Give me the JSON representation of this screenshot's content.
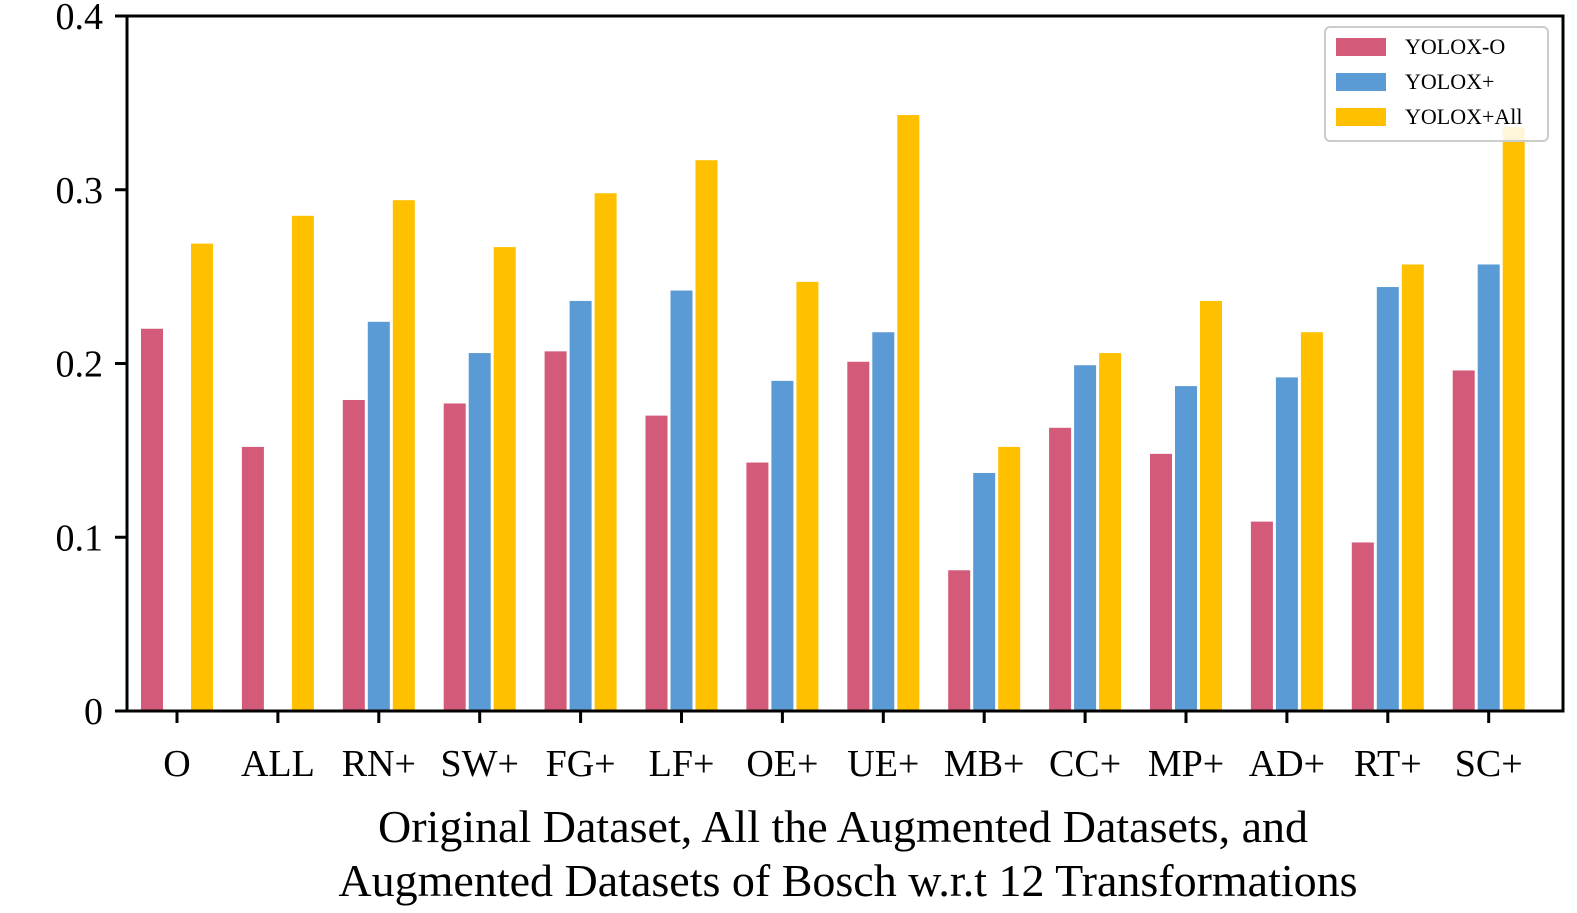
{
  "chart_data": {
    "type": "bar",
    "title": "",
    "xlabel_lines": [
      "Original Dataset, All the Augmented Datasets, and",
      "Augmented Datasets of Bosch w.r.t 12 Transformations"
    ],
    "ylabel": "",
    "ylim": [
      0,
      0.4
    ],
    "yticks": [
      0,
      0.1,
      0.2,
      0.3,
      0.4
    ],
    "ytick_labels": [
      "0",
      "0.1",
      "0.2",
      "0.3",
      "0.4"
    ],
    "grid": false,
    "legend_position": "top-right",
    "categories": [
      "O",
      "ALL",
      "RN+",
      "SW+",
      "FG+",
      "LF+",
      "OE+",
      "UE+",
      "MB+",
      "CC+",
      "MP+",
      "AD+",
      "RT+",
      "SC+"
    ],
    "series": [
      {
        "name": "YOLOX-O",
        "color": "#d45a7a",
        "values": [
          0.22,
          0.152,
          0.179,
          0.177,
          0.207,
          0.17,
          0.143,
          0.201,
          0.081,
          0.163,
          0.148,
          0.109,
          0.097,
          0.196
        ]
      },
      {
        "name": "YOLOX+",
        "color": "#5b9bd5",
        "values": [
          null,
          null,
          0.224,
          0.206,
          0.236,
          0.242,
          0.19,
          0.218,
          0.137,
          0.199,
          0.187,
          0.192,
          0.244,
          0.257
        ]
      },
      {
        "name": "YOLOX+All",
        "color": "#ffc000",
        "values": [
          0.269,
          0.285,
          0.294,
          0.267,
          0.298,
          0.317,
          0.247,
          0.343,
          0.152,
          0.206,
          0.236,
          0.218,
          0.257,
          0.336
        ]
      }
    ]
  }
}
